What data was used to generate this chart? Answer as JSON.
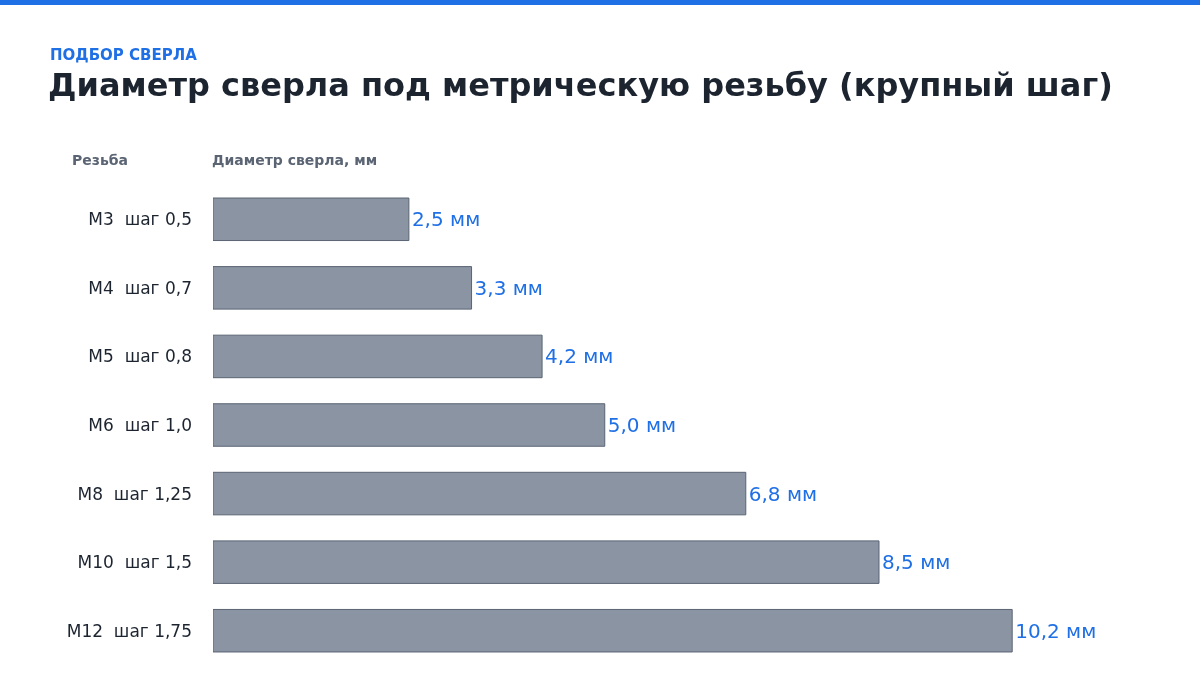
{
  "chart_data": {
    "type": "bar",
    "orientation": "horizontal",
    "subtitle": "ПОДБОР СВЕРЛА",
    "title": "Диаметр сверла под метрическую резьбу (крупный шаг)",
    "ylabel": "Резьба",
    "xlabel": "Диаметр сверла, мм",
    "categories": [
      "M3  шаг 0,5",
      "M4  шаг 0,7",
      "M5  шаг 0,8",
      "M6  шаг 1,0",
      "M8  шаг 1,25",
      "M10  шаг 1,5",
      "M12  шаг 1,75"
    ],
    "values": [
      2.5,
      3.3,
      4.2,
      5.0,
      6.8,
      8.5,
      10.2
    ],
    "value_labels": [
      "2,5 мм",
      "3,3 мм",
      "4,2 мм",
      "5,0 мм",
      "6,8 мм",
      "8,5 мм",
      "10,2 мм"
    ],
    "color": "#8a94a3"
  }
}
